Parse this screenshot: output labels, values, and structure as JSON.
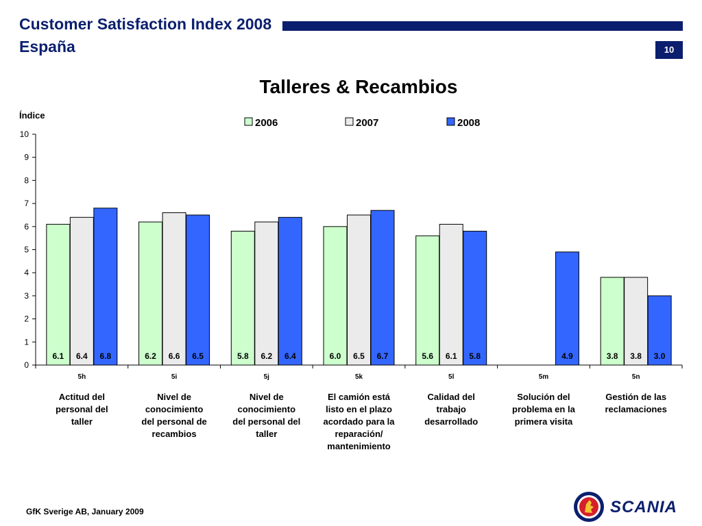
{
  "header": {
    "title": "Customer Satisfaction Index 2008",
    "subtitle": "España",
    "page_number": "10"
  },
  "footer": {
    "source": "GfK Sverige AB, January 2009"
  },
  "logo": {
    "brand": "SCANIA",
    "icon": "griffin-emblem-icon"
  },
  "colors": {
    "2006": "#ccffcc",
    "2007": "#ebebeb",
    "2008": "#3366ff",
    "accent": "#0b1f6e"
  },
  "chart_data": {
    "type": "bar",
    "title": "Talleres & Recambios",
    "ylabel": "Índice",
    "xlabel": "",
    "ylim": [
      0,
      10
    ],
    "yticks": [
      0,
      1,
      2,
      3,
      4,
      5,
      6,
      7,
      8,
      9,
      10
    ],
    "grid": false,
    "legend_position": "top",
    "categories": [
      "5h",
      "5i",
      "5j",
      "5k",
      "5l",
      "5m",
      "5n"
    ],
    "category_descriptions": [
      [
        "Actitud del",
        "personal del",
        "taller"
      ],
      [
        "Nivel de",
        "conocimiento",
        "del personal de",
        "recambios"
      ],
      [
        "Nivel de",
        "conocimiento",
        "del personal del",
        "taller"
      ],
      [
        "El camión está",
        "listo en el plazo",
        "acordado para la",
        "reparación/",
        "mantenimiento"
      ],
      [
        "Calidad del",
        "trabajo",
        "desarrollado"
      ],
      [
        "Solución del",
        "problema en la",
        "primera visita"
      ],
      [
        "Gestión de las",
        "reclamaciones"
      ]
    ],
    "series": [
      {
        "name": "2006",
        "values": [
          6.1,
          6.2,
          5.8,
          6.0,
          5.6,
          null,
          3.8
        ],
        "labels": [
          "6.1",
          "6.2",
          "5.8",
          "6.0",
          "5.6",
          "",
          "3.8"
        ]
      },
      {
        "name": "2007",
        "values": [
          6.4,
          6.6,
          6.2,
          6.5,
          6.1,
          null,
          3.8
        ],
        "labels": [
          "6.4",
          "6.6",
          "6.2",
          "6.5",
          "6.1",
          "",
          "3.8"
        ]
      },
      {
        "name": "2008",
        "values": [
          6.8,
          6.5,
          6.4,
          6.7,
          5.8,
          4.9,
          3.0
        ],
        "labels": [
          "6.8",
          "6.5",
          "6.4",
          "6.7",
          "5.8",
          "4.9",
          "3.0"
        ]
      }
    ]
  }
}
